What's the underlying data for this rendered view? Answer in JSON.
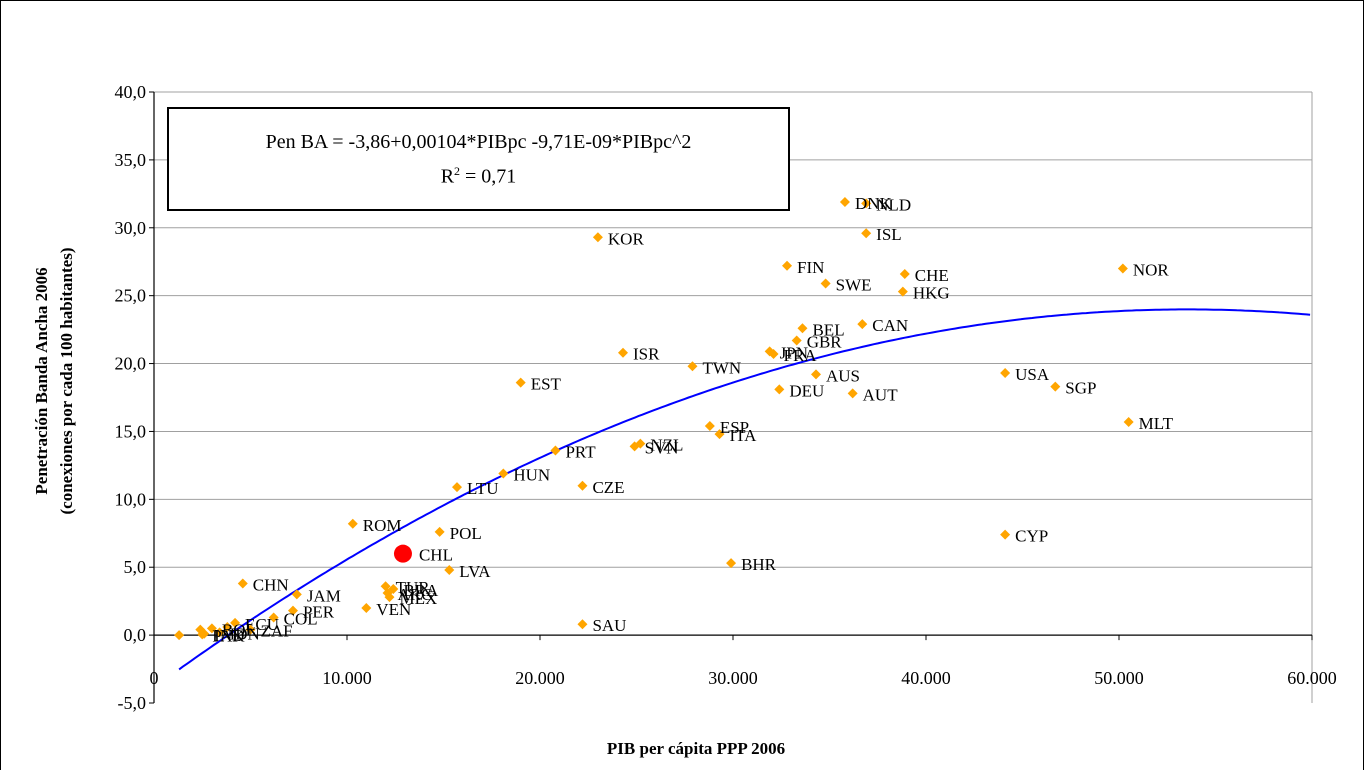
{
  "chart_data": {
    "type": "scatter",
    "ylabel": "Penetración Banda Ancha 2006",
    "ylabel2": "(conexiones por cada 100 habitantes)",
    "xlabel": "PIB per cápita PPP 2006",
    "xlim": [
      0,
      60000
    ],
    "ylim": [
      -5,
      40
    ],
    "x_ticks": [
      "0",
      "10.000",
      "20.000",
      "30.000",
      "40.000",
      "50.000",
      "60.000"
    ],
    "y_ticks": [
      "-5,0",
      "0,0",
      "5,0",
      "10,0",
      "15,0",
      "20,0",
      "25,0",
      "30,0",
      "35,0",
      "40,0"
    ],
    "grid": "horizontal",
    "equation": {
      "line1": "Pen BA  = -3,86+0,00104*PIBpc -9,71E-09*PIBpc^2",
      "r2_prefix": "R",
      "r2_sup": "2",
      "r2_suffix": " = 0,71"
    },
    "trend": {
      "type": "polynomial",
      "a": -3.86,
      "b": 0.00104,
      "c": -9.71e-09,
      "x_from": 1300,
      "x_to": 60000,
      "color": "#0000ff"
    },
    "point_color": "#ffa500",
    "highlight_color": "#ff0000",
    "highlight": {
      "label": "CHL",
      "x": 12900,
      "y": 6.0
    },
    "points": [
      {
        "label": "DNK",
        "x": 35800,
        "y": 31.9
      },
      {
        "label": "NLD",
        "x": 36900,
        "y": 31.8
      },
      {
        "label": "ISL",
        "x": 36900,
        "y": 29.6
      },
      {
        "label": "KOR",
        "x": 23000,
        "y": 29.3
      },
      {
        "label": "FIN",
        "x": 32800,
        "y": 27.2
      },
      {
        "label": "NOR",
        "x": 50200,
        "y": 27.0
      },
      {
        "label": "CHE",
        "x": 38900,
        "y": 26.6
      },
      {
        "label": "SWE",
        "x": 34800,
        "y": 25.9
      },
      {
        "label": "HKG",
        "x": 38800,
        "y": 25.3
      },
      {
        "label": "CAN",
        "x": 36700,
        "y": 22.9
      },
      {
        "label": "BEL",
        "x": 33600,
        "y": 22.6
      },
      {
        "label": "GBR",
        "x": 33300,
        "y": 21.7
      },
      {
        "label": "JPN",
        "x": 31900,
        "y": 20.9
      },
      {
        "label": "FRA",
        "x": 32100,
        "y": 20.7
      },
      {
        "label": "ISR",
        "x": 24300,
        "y": 20.8
      },
      {
        "label": "TWN",
        "x": 27900,
        "y": 19.8
      },
      {
        "label": "USA",
        "x": 44100,
        "y": 19.3
      },
      {
        "label": "AUS",
        "x": 34300,
        "y": 19.2
      },
      {
        "label": "EST",
        "x": 19000,
        "y": 18.6
      },
      {
        "label": "SGP",
        "x": 46700,
        "y": 18.3
      },
      {
        "label": "DEU",
        "x": 32400,
        "y": 18.1
      },
      {
        "label": "AUT",
        "x": 36200,
        "y": 17.8
      },
      {
        "label": "MLT",
        "x": 50500,
        "y": 15.7
      },
      {
        "label": "ESP",
        "x": 28800,
        "y": 15.4
      },
      {
        "label": "ITA",
        "x": 29300,
        "y": 14.8
      },
      {
        "label": "NZL",
        "x": 25200,
        "y": 14.1
      },
      {
        "label": "SVN",
        "x": 24900,
        "y": 13.9
      },
      {
        "label": "PRT",
        "x": 20800,
        "y": 13.6
      },
      {
        "label": "HUN",
        "x": 18100,
        "y": 11.9
      },
      {
        "label": "CZE",
        "x": 22200,
        "y": 11.0
      },
      {
        "label": "LTU",
        "x": 15700,
        "y": 10.9
      },
      {
        "label": "ROM",
        "x": 10300,
        "y": 8.2
      },
      {
        "label": "POL",
        "x": 14800,
        "y": 7.6
      },
      {
        "label": "CYP",
        "x": 44100,
        "y": 7.4
      },
      {
        "label": "BHR",
        "x": 29900,
        "y": 5.3
      },
      {
        "label": "LVA",
        "x": 15300,
        "y": 4.8
      },
      {
        "label": "CHN",
        "x": 4600,
        "y": 3.8
      },
      {
        "label": "TUR",
        "x": 12000,
        "y": 3.6
      },
      {
        "label": "BRA",
        "x": 12400,
        "y": 3.4
      },
      {
        "label": "ARG",
        "x": 12100,
        "y": 3.1
      },
      {
        "label": "MEX",
        "x": 12200,
        "y": 2.8
      },
      {
        "label": "JAM",
        "x": 7400,
        "y": 3.0
      },
      {
        "label": "VEN",
        "x": 11000,
        "y": 2.0
      },
      {
        "label": "PER",
        "x": 7200,
        "y": 1.8
      },
      {
        "label": "COL",
        "x": 6200,
        "y": 1.3
      },
      {
        "label": "SAU",
        "x": 22200,
        "y": 0.8
      },
      {
        "label": "ECU",
        "x": 4200,
        "y": 0.9
      },
      {
        "label": "BOL",
        "x": 3000,
        "y": 0.5
      },
      {
        "label": "ZAF",
        "x": 5000,
        "y": 0.4
      },
      {
        "label": "IDN",
        "x": 3400,
        "y": 0.2
      },
      {
        "label": "IND",
        "x": 2600,
        "y": 0.1
      },
      {
        "label": "PAK",
        "x": 2500,
        "y": 0.05
      },
      {
        "label": "",
        "x": 1300,
        "y": 0.0
      },
      {
        "label": "",
        "x": 2400,
        "y": 0.4
      },
      {
        "label": "",
        "x": 3800,
        "y": 0.6
      }
    ]
  }
}
